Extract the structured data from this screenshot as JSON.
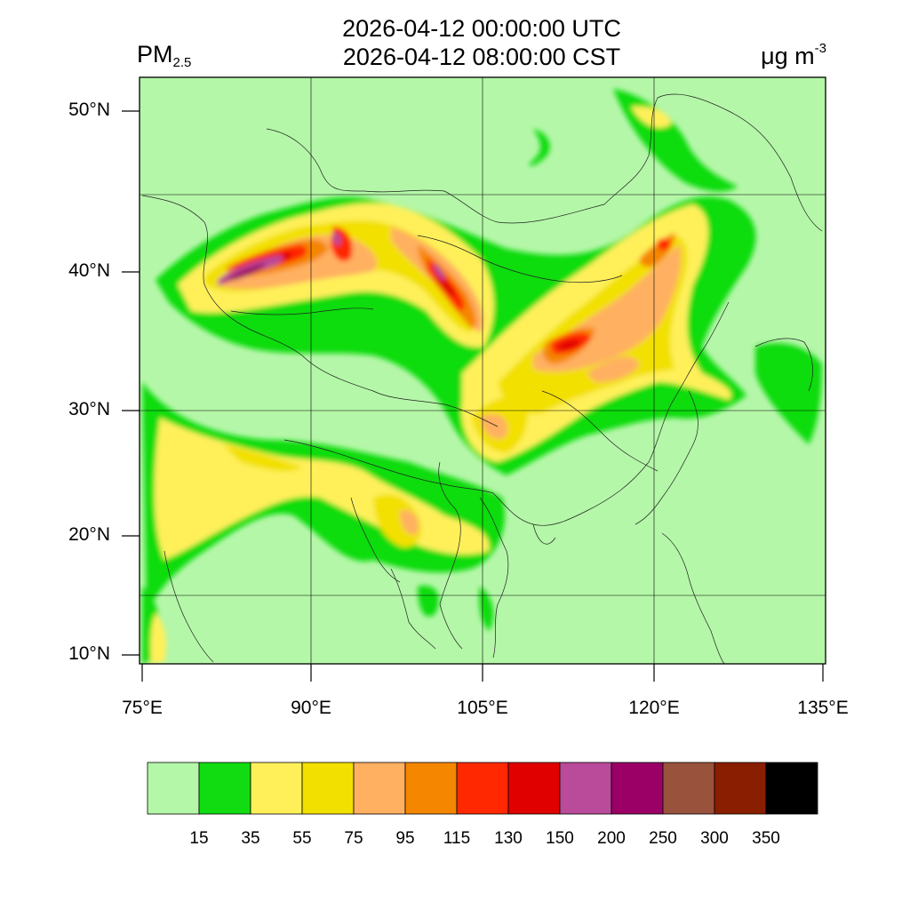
{
  "title": {
    "line1": "2026-04-12 00:00:00 UTC",
    "line2": "2026-04-12 08:00:00 CST"
  },
  "variable": {
    "main": "PM",
    "subscript": "2.5"
  },
  "unit": {
    "main": "μg m",
    "superscript": "-3"
  },
  "map": {
    "lat_labels": [
      "50°N",
      "40°N",
      "30°N",
      "20°N",
      "10°N"
    ],
    "lon_labels": [
      "75°E",
      "90°E",
      "105°E",
      "120°E",
      "135°E"
    ],
    "lon_range": [
      75,
      135
    ],
    "lat_range": [
      9,
      52
    ]
  },
  "colorbar": {
    "colors": [
      "#b4f7a8",
      "#11dc11",
      "#fff05a",
      "#f2e000",
      "#ffb060",
      "#f58600",
      "#ff2800",
      "#e00000",
      "#ba4a9a",
      "#9a0066",
      "#99523c",
      "#8a1e00",
      "#000000"
    ],
    "labels": [
      "15",
      "35",
      "55",
      "75",
      "95",
      "115",
      "130",
      "150",
      "200",
      "250",
      "300",
      "350"
    ]
  }
}
